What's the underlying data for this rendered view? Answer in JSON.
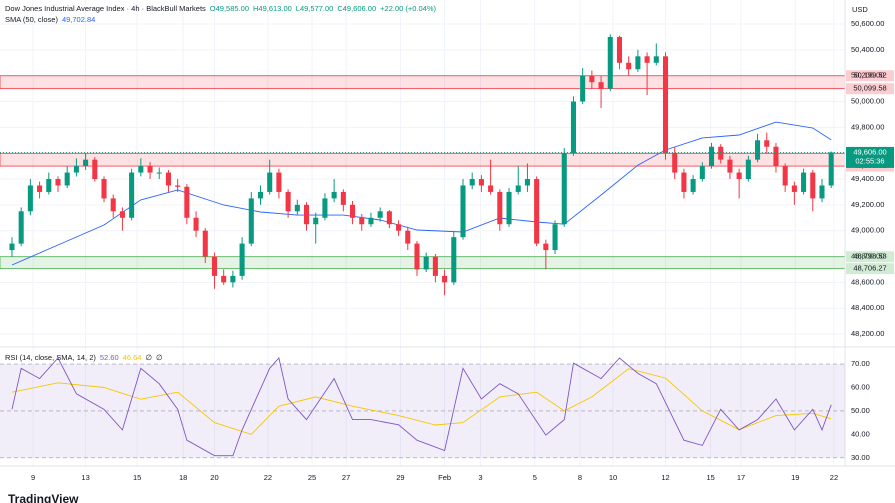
{
  "chart_data": {
    "type": "candlestick",
    "title": "Dow Jones Industrial Average Index · 4h · BlackBull Markets",
    "ohlc_header": [
      "O49,585.00",
      "H49,613.00",
      "L49,577.00",
      "C49,606.00",
      "+22.00 (+0.04%)"
    ],
    "currency": "USD",
    "colors": {
      "up": "#089981",
      "down": "#f23645"
    },
    "ylim": [
      48115,
      50786
    ],
    "yticks": [
      {
        "value": 50600,
        "label": "50,600.00"
      },
      {
        "value": 50400,
        "label": "50,400.00"
      },
      {
        "value": 50200,
        "label": "50,200.00"
      },
      {
        "value": 50000,
        "label": "50,000.00"
      },
      {
        "value": 49800,
        "label": "49,800.00"
      },
      {
        "value": 49600,
        "label": "49,600.00"
      },
      {
        "value": 49400,
        "label": "49,400.00"
      },
      {
        "value": 49200,
        "label": "49,200.00"
      },
      {
        "value": 49000,
        "label": "49,000.00"
      },
      {
        "value": 48800,
        "label": "48,800.00"
      },
      {
        "value": 48600,
        "label": "48,600.00"
      },
      {
        "value": 48400,
        "label": "48,400.00"
      },
      {
        "value": 48200,
        "label": "48,200.00"
      }
    ],
    "xlim": [
      -1.3,
      90.5
    ],
    "xticks": [
      {
        "value": 2.3,
        "label": "9"
      },
      {
        "value": 8,
        "label": "13"
      },
      {
        "value": 13.6,
        "label": "15"
      },
      {
        "value": 18.6,
        "label": "18"
      },
      {
        "value": 22,
        "label": "20"
      },
      {
        "value": 27.8,
        "label": "22"
      },
      {
        "value": 32.6,
        "label": "25"
      },
      {
        "value": 36.3,
        "label": "27"
      },
      {
        "value": 42.2,
        "label": "29"
      },
      {
        "value": 47,
        "label": "Feb"
      },
      {
        "value": 50.9,
        "label": "3"
      },
      {
        "value": 56.8,
        "label": "5"
      },
      {
        "value": 61.7,
        "label": "8"
      },
      {
        "value": 65.3,
        "label": "10"
      },
      {
        "value": 71,
        "label": "12"
      },
      {
        "value": 75.9,
        "label": "15"
      },
      {
        "value": 79.2,
        "label": "17"
      },
      {
        "value": 85.1,
        "label": "19"
      },
      {
        "value": 89.3,
        "label": "22"
      }
    ],
    "candles": [
      [
        48850,
        48950,
        48800,
        48900
      ],
      [
        48900,
        49180,
        48880,
        49150
      ],
      [
        49150,
        49400,
        49120,
        49350
      ],
      [
        49350,
        49380,
        49250,
        49300
      ],
      [
        49300,
        49450,
        49280,
        49400
      ],
      [
        49400,
        49420,
        49300,
        49350
      ],
      [
        49350,
        49500,
        49330,
        49450
      ],
      [
        49450,
        49560,
        49420,
        49500
      ],
      [
        49500,
        49600,
        49470,
        49550
      ],
      [
        49550,
        49570,
        49380,
        49400
      ],
      [
        49400,
        49420,
        49220,
        49250
      ],
      [
        49250,
        49280,
        49100,
        49150
      ],
      [
        49150,
        49180,
        49000,
        49100
      ],
      [
        49100,
        49480,
        49080,
        49450
      ],
      [
        49450,
        49560,
        49420,
        49500
      ],
      [
        49500,
        49530,
        49400,
        49450
      ],
      [
        49450,
        49490,
        49400,
        49450
      ],
      [
        49450,
        49470,
        49300,
        49350
      ],
      [
        49350,
        49400,
        49300,
        49340
      ],
      [
        49340,
        49360,
        49050,
        49100
      ],
      [
        49100,
        49150,
        48950,
        49000
      ],
      [
        49000,
        49020,
        48750,
        48800
      ],
      [
        48800,
        48830,
        48550,
        48650
      ],
      [
        48650,
        48700,
        48580,
        48600
      ],
      [
        48600,
        48690,
        48560,
        48650
      ],
      [
        48650,
        48950,
        48620,
        48900
      ],
      [
        48900,
        49300,
        48880,
        49250
      ],
      [
        49250,
        49350,
        49200,
        49300
      ],
      [
        49300,
        49550,
        49280,
        49450
      ],
      [
        49450,
        49480,
        49250,
        49300
      ],
      [
        49300,
        49320,
        49100,
        49150
      ],
      [
        49150,
        49240,
        49120,
        49200
      ],
      [
        49200,
        49220,
        49000,
        49050
      ],
      [
        49050,
        49140,
        48900,
        49100
      ],
      [
        49100,
        49290,
        49080,
        49250
      ],
      [
        49250,
        49400,
        49220,
        49300
      ],
      [
        49300,
        49320,
        49150,
        49200
      ],
      [
        49200,
        49230,
        49050,
        49100
      ],
      [
        49100,
        49130,
        49000,
        49050
      ],
      [
        49050,
        49140,
        49030,
        49100
      ],
      [
        49100,
        49180,
        49070,
        49150
      ],
      [
        49150,
        49160,
        49020,
        49050
      ],
      [
        49050,
        49080,
        48960,
        49000
      ],
      [
        49000,
        49030,
        48850,
        48900
      ],
      [
        48900,
        48920,
        48650,
        48700
      ],
      [
        48700,
        48830,
        48680,
        48800
      ],
      [
        48800,
        48820,
        48600,
        48650
      ],
      [
        48650,
        48700,
        48500,
        48600
      ],
      [
        48600,
        48990,
        48580,
        48950
      ],
      [
        48950,
        49400,
        48930,
        49350
      ],
      [
        49350,
        49450,
        49320,
        49400
      ],
      [
        49400,
        49430,
        49300,
        49350
      ],
      [
        49350,
        49550,
        49280,
        49300
      ],
      [
        49300,
        49320,
        49000,
        49050
      ],
      [
        49050,
        49330,
        49030,
        49300
      ],
      [
        49300,
        49500,
        49280,
        49350
      ],
      [
        49350,
        49520,
        49300,
        49400
      ],
      [
        49400,
        49420,
        48880,
        48900
      ],
      [
        48900,
        48930,
        48700,
        48850
      ],
      [
        48850,
        49080,
        48820,
        49050
      ],
      [
        49050,
        49640,
        49030,
        49600
      ],
      [
        49600,
        50040,
        49580,
        50000
      ],
      [
        50000,
        50260,
        49980,
        50200
      ],
      [
        50200,
        50240,
        50100,
        50150
      ],
      [
        50150,
        50200,
        49950,
        50100
      ],
      [
        50100,
        50520,
        50080,
        50500
      ],
      [
        50500,
        50510,
        50250,
        50300
      ],
      [
        50300,
        50350,
        50200,
        50250
      ],
      [
        50250,
        50400,
        50230,
        50350
      ],
      [
        50350,
        50380,
        50050,
        50300
      ],
      [
        50300,
        50450,
        50280,
        50350
      ],
      [
        50350,
        50380,
        49550,
        49600
      ],
      [
        49600,
        49650,
        49400,
        49450
      ],
      [
        49450,
        49480,
        49250,
        49300
      ],
      [
        49300,
        49430,
        49280,
        49400
      ],
      [
        49400,
        49530,
        49380,
        49500
      ],
      [
        49500,
        49680,
        49480,
        49650
      ],
      [
        49650,
        49670,
        49520,
        49550
      ],
      [
        49550,
        49580,
        49400,
        49450
      ],
      [
        49450,
        49480,
        49250,
        49400
      ],
      [
        49400,
        49580,
        49380,
        49550
      ],
      [
        49550,
        49750,
        49530,
        49700
      ],
      [
        49700,
        49760,
        49600,
        49650
      ],
      [
        49650,
        49680,
        49450,
        49500
      ],
      [
        49500,
        49520,
        49300,
        49350
      ],
      [
        49350,
        49380,
        49200,
        49300
      ],
      [
        49300,
        49480,
        49280,
        49450
      ],
      [
        49450,
        49470,
        49150,
        49250
      ],
      [
        49250,
        49400,
        49220,
        49350
      ],
      [
        49350,
        49613,
        49330,
        49606
      ]
    ],
    "sma": {
      "label": "SMA (50, close)",
      "value_label": "49,702.84",
      "color": "#2962ff",
      "x": [
        0,
        5,
        10,
        14,
        18,
        23,
        27,
        31,
        36,
        40,
        44,
        49,
        53,
        57,
        60,
        64,
        68,
        71,
        75,
        79,
        83,
        87,
        89
      ],
      "values": [
        48734,
        48889,
        49044,
        49238,
        49315,
        49199,
        49145,
        49121,
        49121,
        49083,
        49005,
        48990,
        49098,
        49067,
        49050,
        49276,
        49508,
        49625,
        49718,
        49741,
        49841,
        49795,
        49702.84
      ]
    },
    "zones": [
      {
        "color": "#f23645",
        "low": {
          "value": 50099.58,
          "label": "50,099.58"
        },
        "high": {
          "value": 50199.52,
          "label": "50,199.52"
        }
      },
      {
        "color": "#f23645",
        "low": {
          "value": 49500.32,
          "label": "49,500.32"
        },
        "high": {
          "value": 49599.17,
          "label": "49,599.17"
        }
      },
      {
        "color": "#4caf50",
        "low": {
          "value": 48706.27,
          "label": "48,706.27"
        },
        "high": {
          "value": 48798.53,
          "label": "48,798.53"
        }
      }
    ],
    "current": {
      "value": 49606,
      "label": "49,606.00",
      "countdown": "02:55:36"
    },
    "rsi": {
      "label": "RSI (14, close, SMA, 14, 2)",
      "value_labels": [
        "52.60",
        "46.64",
        "∅",
        "∅"
      ],
      "ylim": [
        26.5,
        76
      ],
      "yticks": [
        {
          "value": 70,
          "label": "70.00"
        },
        {
          "value": 60,
          "label": "60.00"
        },
        {
          "value": 50,
          "label": "50.00"
        },
        {
          "value": 40,
          "label": "40.00"
        },
        {
          "value": 30,
          "label": "30.00"
        }
      ],
      "band": [
        30,
        70
      ],
      "midline": 50,
      "line": {
        "color": "#7e57c2",
        "x": [
          0,
          1,
          3,
          5,
          7,
          10,
          12,
          14,
          16,
          18,
          19,
          22,
          24,
          25,
          28,
          29,
          30,
          32,
          35,
          37,
          39,
          42,
          44,
          47,
          49,
          51,
          53,
          55,
          58,
          60,
          61,
          62,
          64,
          66,
          68,
          70,
          73,
          75,
          77,
          79,
          81,
          83,
          85,
          87,
          88,
          89
        ],
        "values": [
          50.7,
          68.2,
          63.8,
          72.6,
          57.3,
          50.7,
          41.9,
          68.2,
          61.6,
          50.7,
          37.5,
          30.9,
          30.9,
          41.9,
          68.2,
          72.6,
          55.1,
          46.3,
          63.8,
          46.3,
          46.3,
          44.1,
          37.5,
          33.1,
          68.2,
          55.1,
          61.6,
          57.3,
          39.7,
          46.3,
          70.4,
          68.2,
          63.8,
          72.6,
          66.0,
          61.6,
          37.5,
          35.3,
          50.7,
          41.9,
          46.3,
          55.1,
          41.9,
          50.7,
          41.9,
          52.6
        ]
      },
      "sma": {
        "color": "#f7c600",
        "x": [
          0,
          5,
          10,
          14,
          18,
          22,
          26,
          29,
          33,
          37,
          42,
          46,
          49,
          53,
          57,
          60,
          63,
          67,
          71,
          75,
          79,
          83,
          87,
          89
        ],
        "values": [
          58,
          62,
          60,
          55,
          58,
          45,
          40,
          52,
          56,
          52,
          48,
          44,
          45,
          56,
          58,
          50,
          56,
          68,
          64,
          50,
          42,
          48,
          49,
          46.64
        ]
      }
    },
    "watermark": "TradingView"
  }
}
